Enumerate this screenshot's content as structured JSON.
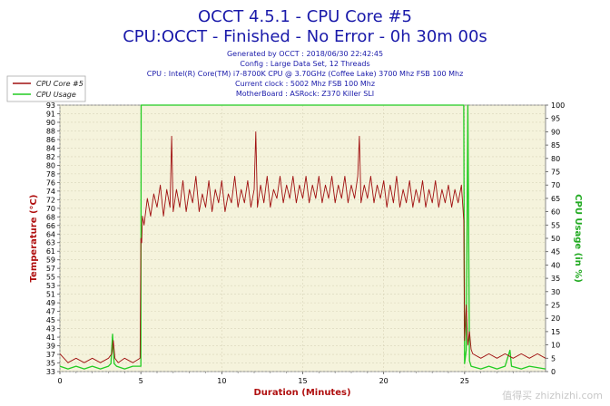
{
  "chart_data": {
    "type": "line",
    "title": "OCCT 4.5.1 - CPU Core #5",
    "subtitle": "CPU:OCCT - Finished - No Error - 0h 30m 00s",
    "info_lines": [
      "Generated by OCCT : 2018/06/30 22:42:45",
      "Config : Large Data Set, 12 Threads",
      "CPU : Intel(R) Core(TM) i7-8700K CPU @ 3.70GHz (Coffee Lake) 3700 Mhz FSB 100 Mhz",
      "Current clock : 5002 Mhz FSB 100 Mhz",
      "MotherBoard : ASRock: Z370 Killer SLI"
    ],
    "xlabel": "Duration (Minutes)",
    "ylabel_left": "Temperature (°C)",
    "ylabel_right": "CPU Usage (in %)",
    "xlim": [
      0,
      30
    ],
    "ylim_left": [
      33,
      93
    ],
    "ylim_right": [
      0,
      100
    ],
    "x_ticks": [
      "0",
      "5",
      "10",
      "15",
      "20",
      "25"
    ],
    "y_ticks_left": [
      "33",
      "35",
      "37",
      "39",
      "41",
      "43",
      "45",
      "47",
      "49",
      "51",
      "53",
      "55",
      "57",
      "59",
      "61",
      "63",
      "64",
      "66",
      "68",
      "70",
      "72",
      "74",
      "76",
      "78",
      "80",
      "82",
      "84",
      "86",
      "88",
      "90",
      "91",
      "93"
    ],
    "y_ticks_right": [
      "0",
      "5",
      "10",
      "15",
      "20",
      "25",
      "30",
      "35",
      "40",
      "45",
      "50",
      "55",
      "60",
      "65",
      "70",
      "75",
      "80",
      "85",
      "90",
      "95",
      "100"
    ],
    "grid": true,
    "legend_placement": "top-left",
    "series": [
      {
        "name": "CPU Core #5",
        "axis": "left",
        "color": "#a01010",
        "points": [
          [
            0,
            37
          ],
          [
            0.5,
            35
          ],
          [
            1,
            36
          ],
          [
            1.5,
            35
          ],
          [
            2,
            36
          ],
          [
            2.5,
            35
          ],
          [
            3,
            36
          ],
          [
            3.2,
            37
          ],
          [
            3.3,
            40
          ],
          [
            3.4,
            36
          ],
          [
            3.6,
            35
          ],
          [
            4,
            36
          ],
          [
            4.5,
            35
          ],
          [
            4.95,
            36
          ],
          [
            5,
            63
          ],
          [
            5.05,
            62
          ],
          [
            5.1,
            68
          ],
          [
            5.2,
            66
          ],
          [
            5.4,
            72
          ],
          [
            5.6,
            68
          ],
          [
            5.8,
            73
          ],
          [
            6,
            70
          ],
          [
            6.2,
            75
          ],
          [
            6.4,
            68
          ],
          [
            6.6,
            74
          ],
          [
            6.8,
            70
          ],
          [
            6.9,
            86
          ],
          [
            7.0,
            69
          ],
          [
            7.2,
            74
          ],
          [
            7.4,
            70
          ],
          [
            7.6,
            76
          ],
          [
            7.8,
            69
          ],
          [
            8,
            74
          ],
          [
            8.2,
            71
          ],
          [
            8.4,
            77
          ],
          [
            8.6,
            69
          ],
          [
            8.8,
            73
          ],
          [
            9,
            70
          ],
          [
            9.2,
            76
          ],
          [
            9.4,
            69
          ],
          [
            9.6,
            74
          ],
          [
            9.8,
            71
          ],
          [
            10,
            76
          ],
          [
            10.2,
            69
          ],
          [
            10.4,
            73
          ],
          [
            10.6,
            71
          ],
          [
            10.8,
            77
          ],
          [
            11,
            70
          ],
          [
            11.2,
            74
          ],
          [
            11.4,
            71
          ],
          [
            11.6,
            76
          ],
          [
            11.8,
            70
          ],
          [
            12,
            74
          ],
          [
            12.1,
            87
          ],
          [
            12.2,
            70
          ],
          [
            12.4,
            75
          ],
          [
            12.6,
            71
          ],
          [
            12.8,
            77
          ],
          [
            13,
            70
          ],
          [
            13.2,
            74
          ],
          [
            13.4,
            72
          ],
          [
            13.6,
            77
          ],
          [
            13.8,
            71
          ],
          [
            14,
            75
          ],
          [
            14.2,
            72
          ],
          [
            14.4,
            77
          ],
          [
            14.6,
            71
          ],
          [
            14.8,
            75
          ],
          [
            15,
            72
          ],
          [
            15.2,
            77
          ],
          [
            15.4,
            71
          ],
          [
            15.6,
            75
          ],
          [
            15.8,
            72
          ],
          [
            16,
            77
          ],
          [
            16.2,
            71
          ],
          [
            16.4,
            75
          ],
          [
            16.6,
            72
          ],
          [
            16.8,
            77
          ],
          [
            17,
            71
          ],
          [
            17.2,
            75
          ],
          [
            17.4,
            72
          ],
          [
            17.6,
            77
          ],
          [
            17.8,
            71
          ],
          [
            18,
            75
          ],
          [
            18.2,
            72
          ],
          [
            18.4,
            77
          ],
          [
            18.5,
            86
          ],
          [
            18.6,
            71
          ],
          [
            18.8,
            75
          ],
          [
            19,
            72
          ],
          [
            19.2,
            77
          ],
          [
            19.4,
            71
          ],
          [
            19.6,
            75
          ],
          [
            19.8,
            72
          ],
          [
            20,
            76
          ],
          [
            20.2,
            70
          ],
          [
            20.4,
            75
          ],
          [
            20.6,
            71
          ],
          [
            20.8,
            77
          ],
          [
            21,
            70
          ],
          [
            21.2,
            74
          ],
          [
            21.4,
            71
          ],
          [
            21.6,
            76
          ],
          [
            21.8,
            70
          ],
          [
            22,
            74
          ],
          [
            22.2,
            71
          ],
          [
            22.4,
            76
          ],
          [
            22.6,
            70
          ],
          [
            22.8,
            74
          ],
          [
            23,
            71
          ],
          [
            23.2,
            76
          ],
          [
            23.4,
            70
          ],
          [
            23.6,
            74
          ],
          [
            23.8,
            71
          ],
          [
            24,
            75
          ],
          [
            24.2,
            70
          ],
          [
            24.4,
            74
          ],
          [
            24.6,
            71
          ],
          [
            24.8,
            75
          ],
          [
            24.95,
            67
          ],
          [
            25,
            40
          ],
          [
            25.1,
            48
          ],
          [
            25.2,
            39
          ],
          [
            25.3,
            42
          ],
          [
            25.4,
            38
          ],
          [
            25.5,
            37
          ],
          [
            26,
            36
          ],
          [
            26.5,
            37
          ],
          [
            27,
            36
          ],
          [
            27.5,
            37
          ],
          [
            28,
            36
          ],
          [
            28.5,
            37
          ],
          [
            29,
            36
          ],
          [
            29.5,
            37
          ],
          [
            30,
            36
          ]
        ]
      },
      {
        "name": "CPU Usage",
        "axis": "right",
        "color": "#22cc22",
        "points": [
          [
            0,
            2
          ],
          [
            0.5,
            1
          ],
          [
            1,
            2
          ],
          [
            1.5,
            1
          ],
          [
            2,
            2
          ],
          [
            2.5,
            1
          ],
          [
            3,
            2
          ],
          [
            3.15,
            3
          ],
          [
            3.25,
            14
          ],
          [
            3.35,
            3
          ],
          [
            3.5,
            2
          ],
          [
            4,
            1
          ],
          [
            4.5,
            2
          ],
          [
            4.95,
            2
          ],
          [
            5.0,
            2
          ],
          [
            5.02,
            100
          ],
          [
            6,
            100
          ],
          [
            10,
            100
          ],
          [
            15,
            100
          ],
          [
            20,
            100
          ],
          [
            24.9,
            100
          ],
          [
            24.95,
            100
          ],
          [
            25.0,
            3
          ],
          [
            25.1,
            8
          ],
          [
            25.2,
            100
          ],
          [
            25.3,
            4
          ],
          [
            25.4,
            2
          ],
          [
            26,
            1
          ],
          [
            26.5,
            2
          ],
          [
            27,
            1
          ],
          [
            27.5,
            2
          ],
          [
            27.8,
            8
          ],
          [
            27.9,
            2
          ],
          [
            28.5,
            1
          ],
          [
            29,
            2
          ],
          [
            30,
            1
          ]
        ]
      }
    ]
  },
  "watermark": "值得买 zhizhizhi.com"
}
